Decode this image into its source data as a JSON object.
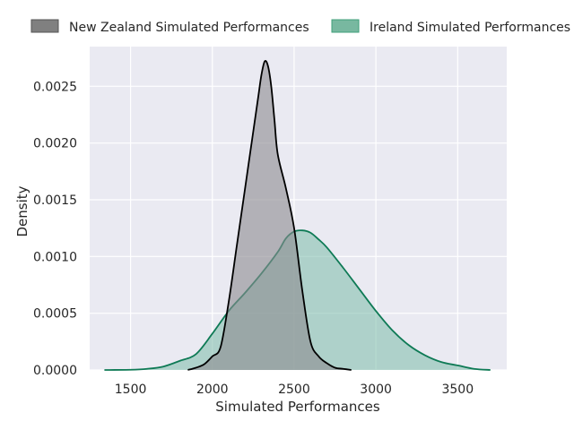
{
  "chart_data": {
    "type": "area",
    "xlabel": "Simulated Performances",
    "ylabel": "Density",
    "xlim": [
      1250,
      3800
    ],
    "ylim": [
      0,
      0.00285
    ],
    "x_ticks": [
      1500,
      2000,
      2500,
      3000,
      3500
    ],
    "x_tick_labels": [
      "1500",
      "2000",
      "2500",
      "3000",
      "3500"
    ],
    "y_ticks": [
      0,
      0.0005,
      0.001,
      0.0015,
      0.002,
      0.0025
    ],
    "y_tick_labels": [
      "0.0000",
      "0.0005",
      "0.0010",
      "0.0015",
      "0.0020",
      "0.0025"
    ],
    "grid": true,
    "legend_position": "top",
    "series": [
      {
        "name": "New Zealand Simulated Performances",
        "fill_color": "#8c8a90",
        "fill_opacity": 0.6,
        "line_color": "#000000",
        "x": [
          1850,
          1900,
          1950,
          2000,
          2050,
          2100,
          2150,
          2200,
          2250,
          2280,
          2300,
          2320,
          2340,
          2360,
          2380,
          2400,
          2450,
          2500,
          2550,
          2600,
          2650,
          2700,
          2750,
          2800,
          2850
        ],
        "y": [
          0,
          2e-05,
          5e-05,
          0.00012,
          0.0002,
          0.0006,
          0.0011,
          0.0016,
          0.0021,
          0.0024,
          0.0026,
          0.00272,
          0.00268,
          0.0025,
          0.0022,
          0.0019,
          0.0016,
          0.00125,
          0.0007,
          0.00025,
          0.00012,
          6e-05,
          2e-05,
          1e-05,
          0
        ]
      },
      {
        "name": "Ireland Simulated Performances",
        "fill_color": "#7bbcaa",
        "fill_opacity": 0.55,
        "line_color": "#0e7a55",
        "x": [
          1340,
          1500,
          1600,
          1700,
          1800,
          1900,
          2000,
          2100,
          2200,
          2300,
          2400,
          2450,
          2500,
          2550,
          2600,
          2650,
          2700,
          2800,
          2900,
          3000,
          3100,
          3200,
          3300,
          3400,
          3500,
          3600,
          3700
        ],
        "y": [
          0,
          2e-06,
          1e-05,
          3e-05,
          8e-05,
          0.00014,
          0.00032,
          0.00052,
          0.00068,
          0.00085,
          0.00104,
          0.00116,
          0.00122,
          0.00123,
          0.00121,
          0.00115,
          0.00108,
          0.0009,
          0.00071,
          0.00052,
          0.00035,
          0.00022,
          0.00013,
          7e-05,
          4e-05,
          1e-05,
          0
        ]
      }
    ]
  }
}
